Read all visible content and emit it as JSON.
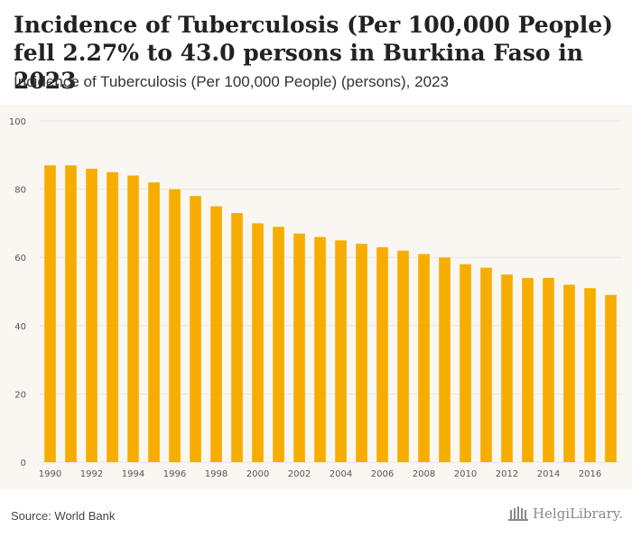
{
  "header": {
    "title": "Incidence of Tuberculosis (Per 100,000 People) fell 2.27% to 43.0 persons in Burkina Faso in 2023",
    "subtitle": "Incidence of Tuberculosis (Per 100,000 People) (persons), 2023"
  },
  "footer": {
    "source": "Source: World Bank",
    "brand": "HelgiLibrary."
  },
  "colors": {
    "bar": "#f7ad00",
    "grid": "#e6e6e6",
    "plot_background": "#faf7f2"
  },
  "chart_data": {
    "type": "bar",
    "categories": [
      "1990",
      "1991",
      "1992",
      "1993",
      "1994",
      "1995",
      "1996",
      "1997",
      "1998",
      "1999",
      "2000",
      "2001",
      "2002",
      "2003",
      "2004",
      "2005",
      "2006",
      "2007",
      "2008",
      "2009",
      "2010",
      "2011",
      "2012",
      "2013",
      "2014",
      "2015",
      "2016",
      "2017"
    ],
    "x_tick_labels": [
      "1990",
      "1992",
      "1994",
      "1996",
      "1998",
      "2000",
      "2002",
      "2004",
      "2006",
      "2008",
      "2010",
      "2012",
      "2014",
      "2016"
    ],
    "values": [
      87,
      87,
      86,
      85,
      84,
      82,
      80,
      78,
      75,
      73,
      70,
      69,
      67,
      66,
      65,
      64,
      63,
      62,
      61,
      60,
      58,
      57,
      55,
      54,
      54,
      52,
      51,
      49
    ],
    "ylim": [
      0,
      100
    ],
    "y_ticks": [
      0,
      20,
      40,
      60,
      80,
      100
    ],
    "grid": true,
    "legend": "none"
  }
}
